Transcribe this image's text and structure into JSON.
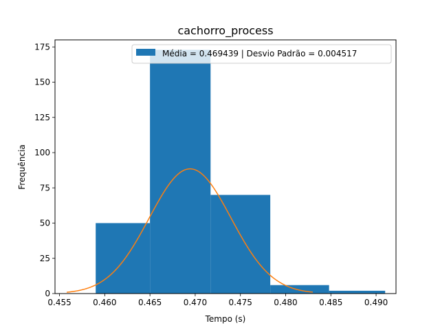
{
  "chart_data": {
    "type": "bar",
    "title": "cachorro_process",
    "xlabel": "Tempo (s)",
    "ylabel": "Frequência",
    "xlim": [
      0.4545,
      0.4922
    ],
    "ylim": [
      0,
      180
    ],
    "xticks": [
      0.455,
      0.46,
      0.465,
      0.47,
      0.475,
      0.48,
      0.485,
      0.49
    ],
    "xtick_labels": [
      "0.455",
      "0.460",
      "0.465",
      "0.470",
      "0.475",
      "0.480",
      "0.485",
      "0.490"
    ],
    "yticks": [
      0,
      25,
      50,
      75,
      100,
      125,
      150,
      175
    ],
    "ytick_labels": [
      "0",
      "25",
      "50",
      "75",
      "100",
      "125",
      "150",
      "175"
    ],
    "bins": [
      {
        "x0": 0.459,
        "x1": 0.465,
        "value": 50
      },
      {
        "x0": 0.465,
        "x1": 0.4717,
        "value": 173
      },
      {
        "x0": 0.4717,
        "x1": 0.4783,
        "value": 70
      },
      {
        "x0": 0.4783,
        "x1": 0.4848,
        "value": 6
      },
      {
        "x0": 0.4848,
        "x1": 0.491,
        "value": 2
      }
    ],
    "bar_color": "#1f77b4",
    "curve": {
      "mean": 0.469439,
      "std": 0.004517,
      "peak": 88.5,
      "x_range": [
        0.4558,
        0.483
      ],
      "color": "#ff7f0e"
    },
    "legend": {
      "label": "Média = 0.469439 | Desvio Padrão = 0.004517",
      "position": "top-right"
    },
    "grid": false
  }
}
